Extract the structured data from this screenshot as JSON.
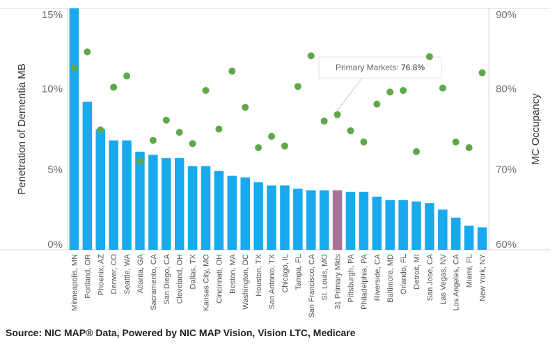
{
  "chart_data": {
    "type": "bar+scatter",
    "title": "",
    "xlabel": "",
    "ylabel": "Penetration of Dementia MB",
    "y2label": "MC Occupancy",
    "ylim": [
      0,
      15
    ],
    "y2lim": [
      60,
      90
    ],
    "yticks": [
      "0%",
      "5%",
      "10%",
      "15%"
    ],
    "y2ticks": [
      "60%",
      "70%",
      "80%",
      "90%"
    ],
    "categories": [
      "Minneapolis, MN",
      "Portland, OR",
      "Phoenix, AZ",
      "Denver, CO",
      "Seattle, WA",
      "Atlanta, GA",
      "Sacramento, CA",
      "San Diego, CA",
      "Cleveland, OH",
      "Dallas, TX",
      "Kansas City, MO",
      "Cincinnati, OH",
      "Boston, MA",
      "Washington, DC",
      "Houston, TX",
      "San Antonio, TX",
      "Chicago, IL",
      "Tampa, FL",
      "San Francisco, CA",
      "St. Louis, MO",
      "31 Primary Mkts",
      "Pittsburgh, PA",
      "Philadelphia, PA",
      "Riverside, CA",
      "Baltimore, MD",
      "Orlando, FL",
      "Detroit, MI",
      "San Jose, CA",
      "Las Vegas, NV",
      "Los Angeles, CA",
      "Miami, FL",
      "New York, NY"
    ],
    "series": [
      {
        "name": "Penetration of Dementia MB",
        "kind": "bar",
        "axis": "left",
        "values": [
          15.0,
          9.2,
          7.5,
          6.8,
          6.8,
          6.1,
          5.9,
          5.7,
          5.7,
          5.2,
          5.2,
          4.9,
          4.6,
          4.5,
          4.2,
          4.0,
          4.0,
          3.8,
          3.7,
          3.7,
          3.7,
          3.6,
          3.6,
          3.3,
          3.1,
          3.1,
          3.0,
          2.9,
          2.5,
          2.0,
          1.5,
          1.4
        ],
        "highlight_index": 20,
        "color": "#19a9ee",
        "highlight_color": "#a8739a"
      },
      {
        "name": "MC Occupancy",
        "kind": "scatter",
        "axis": "right",
        "values": [
          82.6,
          84.6,
          74.9,
          80.2,
          81.6,
          71.0,
          73.6,
          76.1,
          74.6,
          73.2,
          79.8,
          75.0,
          82.2,
          77.7,
          72.7,
          74.1,
          72.9,
          80.3,
          84.1,
          76.0,
          76.8,
          74.8,
          73.4,
          78.1,
          79.6,
          79.8,
          72.2,
          84.0,
          80.1,
          73.4,
          72.7,
          82.0
        ],
        "color": "#5ea84a"
      }
    ],
    "tooltip": {
      "label": "Primary Markets:",
      "value": "76.8%"
    },
    "grid": true,
    "source": "Source: NIC MAP® Data, Powered by NIC MAP Vision, Vision LTC, Medicare"
  }
}
